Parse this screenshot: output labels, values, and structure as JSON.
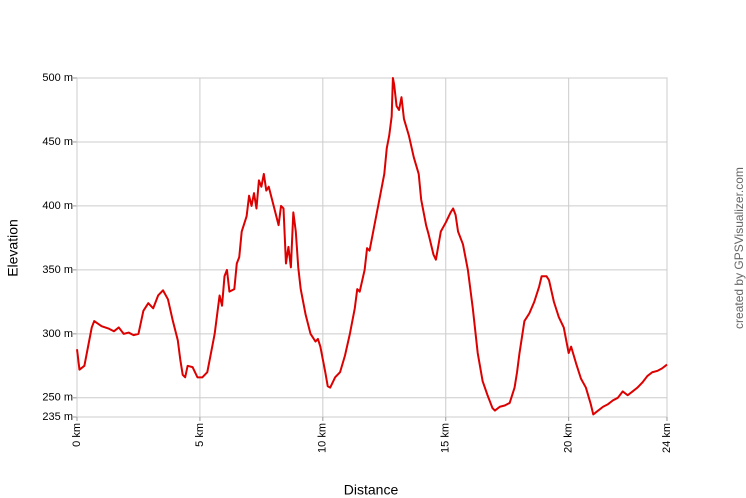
{
  "chart_data": {
    "type": "line",
    "xlabel": "Distance",
    "ylabel": "Elevation",
    "credit": "created by GPSVisualizer.com",
    "color": "#dd0000",
    "grid": true,
    "xlim": [
      0,
      24
    ],
    "ylim": [
      235,
      500
    ],
    "xticks": [
      {
        "value": 0,
        "label": "0 km"
      },
      {
        "value": 5,
        "label": "5 km"
      },
      {
        "value": 10,
        "label": "10 km"
      },
      {
        "value": 15,
        "label": "15 km"
      },
      {
        "value": 20,
        "label": "20 km"
      },
      {
        "value": 24,
        "label": "24 km"
      }
    ],
    "yticks": [
      {
        "value": 235,
        "label": "235 m"
      },
      {
        "value": 250,
        "label": "250 m"
      },
      {
        "value": 300,
        "label": "300 m"
      },
      {
        "value": 350,
        "label": "350 m"
      },
      {
        "value": 400,
        "label": "400 m"
      },
      {
        "value": 450,
        "label": "450 m"
      },
      {
        "value": 500,
        "label": "500 m"
      }
    ],
    "x": [
      0.0,
      0.1,
      0.3,
      0.5,
      0.6,
      0.7,
      1.0,
      1.3,
      1.5,
      1.7,
      1.9,
      2.1,
      2.3,
      2.5,
      2.7,
      2.9,
      3.1,
      3.3,
      3.5,
      3.7,
      3.9,
      4.1,
      4.2,
      4.3,
      4.4,
      4.5,
      4.7,
      4.9,
      5.1,
      5.3,
      5.5,
      5.6,
      5.7,
      5.8,
      5.9,
      6.0,
      6.1,
      6.2,
      6.4,
      6.5,
      6.6,
      6.7,
      6.9,
      7.0,
      7.1,
      7.2,
      7.3,
      7.4,
      7.5,
      7.6,
      7.7,
      7.8,
      8.0,
      8.2,
      8.3,
      8.4,
      8.5,
      8.6,
      8.7,
      8.8,
      8.9,
      9.0,
      9.1,
      9.3,
      9.5,
      9.7,
      9.8,
      9.9,
      10.0,
      10.1,
      10.2,
      10.3,
      10.5,
      10.7,
      10.9,
      11.1,
      11.3,
      11.4,
      11.5,
      11.7,
      11.8,
      11.9,
      12.1,
      12.3,
      12.5,
      12.6,
      12.7,
      12.8,
      12.85,
      12.9,
      13.0,
      13.1,
      13.2,
      13.3,
      13.5,
      13.7,
      13.9,
      14.0,
      14.2,
      14.3,
      14.5,
      14.6,
      14.8,
      15.0,
      15.2,
      15.3,
      15.4,
      15.5,
      15.7,
      15.9,
      16.1,
      16.3,
      16.5,
      16.7,
      16.9,
      17.0,
      17.2,
      17.4,
      17.6,
      17.8,
      17.9,
      18.0,
      18.2,
      18.4,
      18.6,
      18.8,
      18.9,
      19.1,
      19.2,
      19.4,
      19.6,
      19.8,
      19.9,
      20.0,
      20.1,
      20.3,
      20.5,
      20.7,
      20.9,
      21.0,
      21.2,
      21.4,
      21.6,
      21.8,
      22.0,
      22.2,
      22.4,
      22.6,
      22.8,
      23.0,
      23.2,
      23.4,
      23.6,
      23.8,
      24.0
    ],
    "values": [
      288,
      272,
      275,
      295,
      305,
      310,
      306,
      304,
      302,
      305,
      300,
      301,
      299,
      300,
      318,
      324,
      320,
      330,
      334,
      327,
      310,
      295,
      280,
      268,
      266,
      275,
      274,
      266,
      266,
      270,
      290,
      300,
      315,
      330,
      322,
      345,
      350,
      333,
      335,
      355,
      360,
      380,
      392,
      408,
      400,
      410,
      398,
      420,
      415,
      425,
      412,
      415,
      400,
      385,
      400,
      398,
      355,
      368,
      352,
      395,
      380,
      352,
      335,
      315,
      300,
      294,
      296,
      290,
      280,
      270,
      259,
      258,
      266,
      270,
      283,
      300,
      320,
      335,
      333,
      350,
      367,
      365,
      385,
      405,
      425,
      445,
      455,
      470,
      500,
      495,
      478,
      475,
      485,
      468,
      455,
      438,
      425,
      405,
      385,
      378,
      362,
      358,
      380,
      387,
      395,
      398,
      393,
      380,
      370,
      350,
      320,
      285,
      263,
      252,
      242,
      240,
      243,
      244,
      246,
      258,
      270,
      285,
      310,
      316,
      325,
      337,
      345,
      345,
      342,
      325,
      313,
      305,
      295,
      285,
      290,
      277,
      265,
      258,
      245,
      237,
      240,
      243,
      245,
      248,
      250,
      255,
      252,
      255,
      258,
      262,
      267,
      270,
      271,
      273,
      276
    ]
  }
}
